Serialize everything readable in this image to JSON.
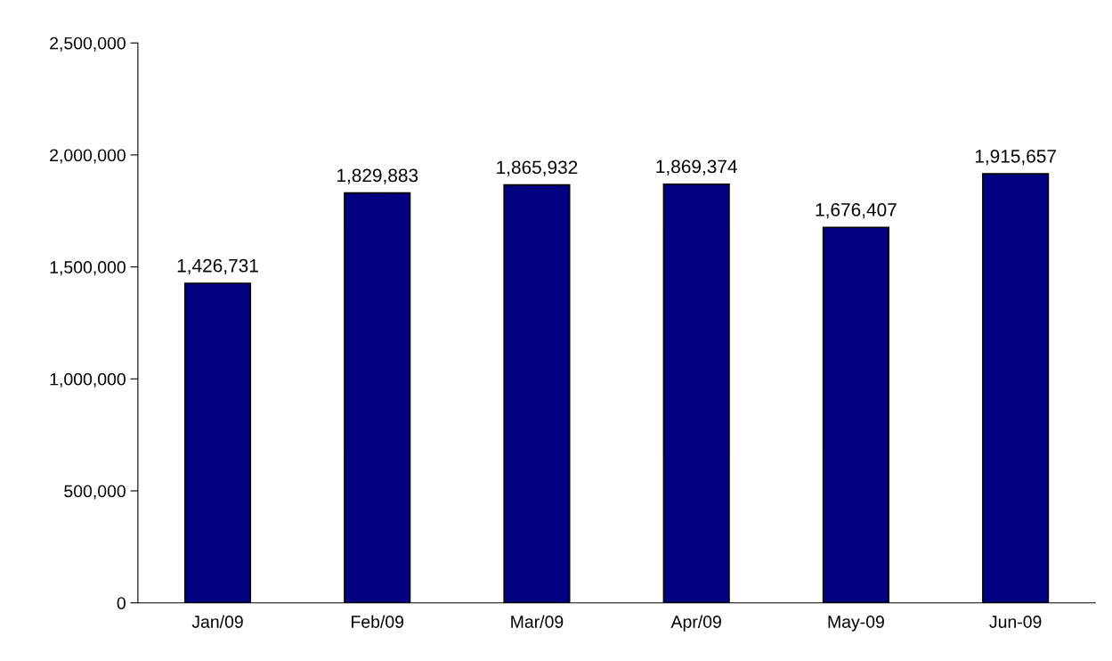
{
  "chart_data": {
    "type": "bar",
    "categories": [
      "Jan/09",
      "Feb/09",
      "Mar/09",
      "Apr/09",
      "May-09",
      "Jun-09"
    ],
    "values": [
      1426731,
      1829883,
      1865932,
      1869374,
      1676407,
      1915657
    ],
    "value_labels": [
      "1,426,731",
      "1,829,883",
      "1,865,932",
      "1,869,374",
      "1,676,407",
      "1,915,657"
    ],
    "color": "#000080",
    "ylim": [
      0,
      2500000
    ],
    "yticks": [
      {
        "value": 0,
        "label": "0"
      },
      {
        "value": 500000,
        "label": "500,000"
      },
      {
        "value": 1000000,
        "label": "1,000,000"
      },
      {
        "value": 1500000,
        "label": "1,500,000"
      },
      {
        "value": 2000000,
        "label": "2,000,000"
      },
      {
        "value": 2500000,
        "label": "2,500,000"
      }
    ],
    "grid": false,
    "legend": false
  }
}
